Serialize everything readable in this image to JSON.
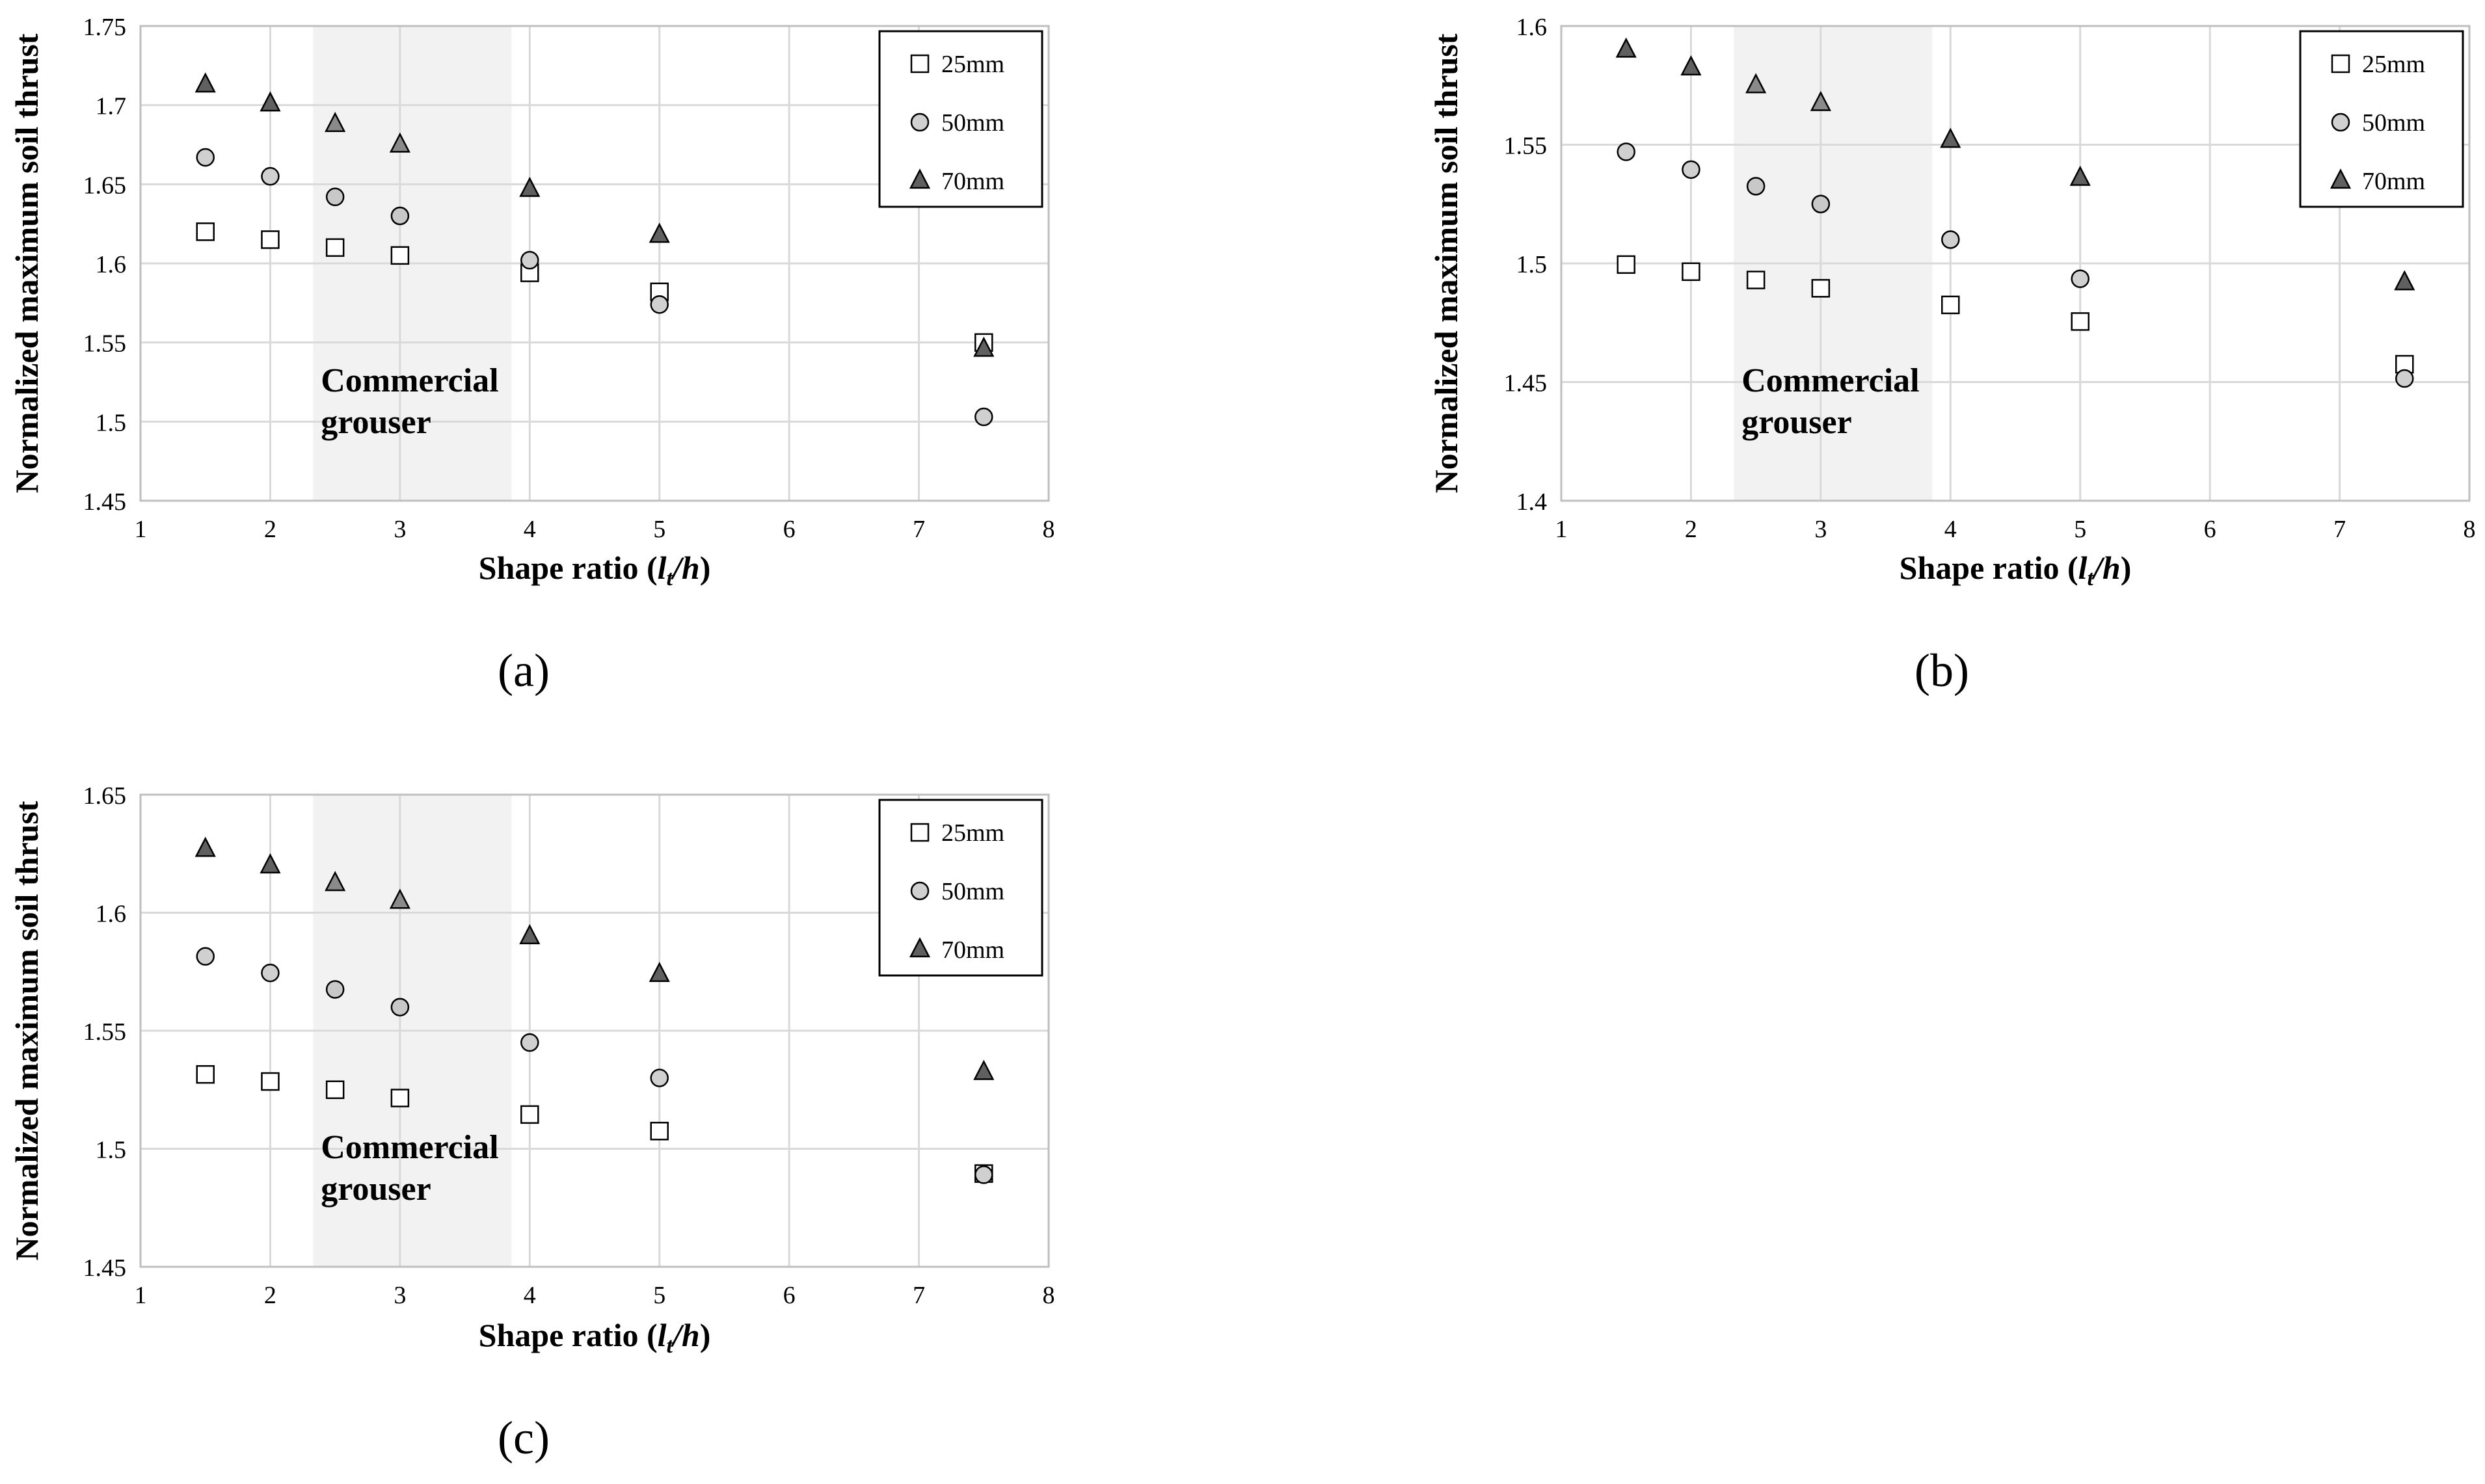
{
  "chart_data": [
    {
      "type": "scatter",
      "panel_label": "(a)",
      "xlabel_main": "Shape ratio (",
      "xlabel_var_l": "l",
      "xlabel_var_sub": "t",
      "xlabel_var_h": "/h",
      "xlabel_close": ")",
      "ylabel": "Normalized maximum soil thrust",
      "xlim": [
        1,
        8
      ],
      "xticks": [
        "1",
        "2",
        "3",
        "4",
        "5",
        "6",
        "7",
        "8"
      ],
      "ylim": [
        1.45,
        1.75
      ],
      "yticks": [
        "1.45",
        "1.5",
        "1.55",
        "1.6",
        "1.65",
        "1.7",
        "1.75"
      ],
      "shade_range": [
        2.33,
        3.86
      ],
      "annotation_line1": "Commercial",
      "annotation_line2": "grouser",
      "legend_position": "top-right",
      "x": [
        1.5,
        2,
        2.5,
        3,
        4,
        5,
        7.5
      ],
      "series": [
        {
          "name": "25mm",
          "marker": "square",
          "values": [
            1.62,
            1.615,
            1.61,
            1.605,
            1.594,
            1.582,
            1.55
          ]
        },
        {
          "name": "50mm",
          "marker": "circle",
          "values": [
            1.667,
            1.655,
            1.642,
            1.63,
            1.602,
            1.574,
            1.503
          ]
        },
        {
          "name": "70mm",
          "marker": "triangle",
          "values": [
            1.713,
            1.701,
            1.688,
            1.675,
            1.647,
            1.618,
            1.546
          ]
        }
      ]
    },
    {
      "type": "scatter",
      "panel_label": "(b)",
      "xlabel_main": "Shape ratio (",
      "xlabel_var_l": "l",
      "xlabel_var_sub": "t",
      "xlabel_var_h": "/h",
      "xlabel_close": ")",
      "ylabel": "Normalized maximum soil thrust",
      "xlim": [
        1,
        8
      ],
      "xticks": [
        "1",
        "2",
        "3",
        "4",
        "5",
        "6",
        "7",
        "8"
      ],
      "ylim": [
        1.4,
        1.6
      ],
      "yticks": [
        "1.4",
        "1.45",
        "1.5",
        "1.55",
        "1.6"
      ],
      "shade_range": [
        2.33,
        3.86
      ],
      "annotation_line1": "Commercial",
      "annotation_line2": "grouser",
      "legend_position": "top-right",
      "x": [
        1.5,
        2,
        2.5,
        3,
        4,
        5,
        7.5
      ],
      "series": [
        {
          "name": "25mm",
          "marker": "square",
          "values": [
            1.4995,
            1.4965,
            1.493,
            1.4895,
            1.4825,
            1.4755,
            1.4575
          ]
        },
        {
          "name": "50mm",
          "marker": "circle",
          "values": [
            1.547,
            1.5395,
            1.5325,
            1.525,
            1.51,
            1.4935,
            1.4515
          ]
        },
        {
          "name": "70mm",
          "marker": "triangle",
          "values": [
            1.59,
            1.5825,
            1.575,
            1.5675,
            1.552,
            1.536,
            1.492
          ]
        }
      ]
    },
    {
      "type": "scatter",
      "panel_label": "(c)",
      "xlabel_main": "Shape ratio (",
      "xlabel_var_l": "l",
      "xlabel_var_sub": "t",
      "xlabel_var_h": "/h",
      "xlabel_close": ")",
      "ylabel": "Normalized maximum soil thrust",
      "xlim": [
        1,
        8
      ],
      "xticks": [
        "1",
        "2",
        "3",
        "4",
        "5",
        "6",
        "7",
        "8"
      ],
      "ylim": [
        1.45,
        1.65
      ],
      "yticks": [
        "1.45",
        "1.5",
        "1.55",
        "1.6",
        "1.65"
      ],
      "shade_range": [
        2.33,
        3.86
      ],
      "annotation_line1": "Commercial",
      "annotation_line2": "grouser",
      "legend_position": "top-right",
      "x": [
        1.5,
        2,
        2.5,
        3,
        4,
        5,
        7.5
      ],
      "series": [
        {
          "name": "25mm",
          "marker": "square",
          "values": [
            1.5315,
            1.5285,
            1.525,
            1.5215,
            1.5145,
            1.5075,
            1.4895
          ]
        },
        {
          "name": "50mm",
          "marker": "circle",
          "values": [
            1.5815,
            1.5745,
            1.5675,
            1.56,
            1.545,
            1.53,
            1.489
          ]
        },
        {
          "name": "70mm",
          "marker": "triangle",
          "values": [
            1.627,
            1.62,
            1.6125,
            1.605,
            1.59,
            1.574,
            1.5325
          ]
        }
      ]
    }
  ],
  "colors": {
    "square_fill": "#ffffff",
    "circle_fill": "#d0d0d0",
    "triangle_fill": "#606060",
    "triangle_fill_shaded": "#8a8a8a",
    "shade": "#f2f2f2",
    "grid": "#d9d9d9",
    "axis": "#bfbfbf",
    "text": "#000000"
  }
}
